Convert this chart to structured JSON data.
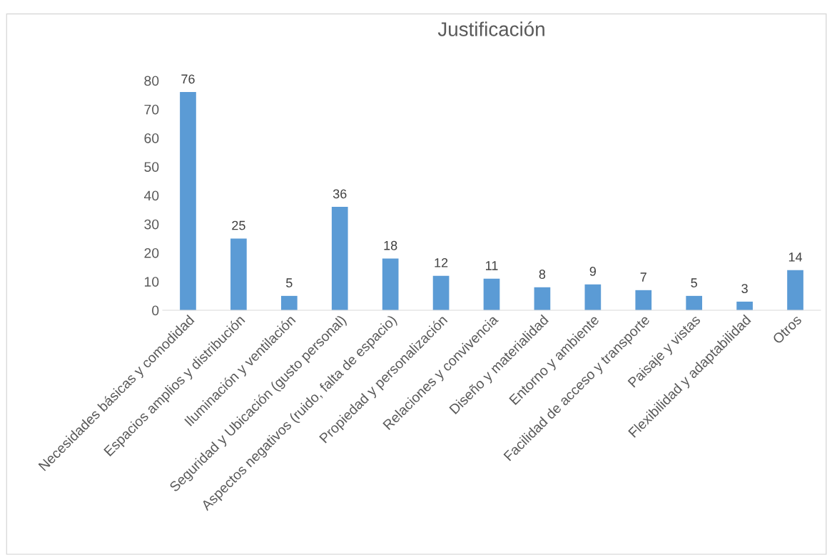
{
  "chart_data": {
    "type": "bar",
    "title": "Justificación",
    "categories": [
      "Necesidades básicas y comodidad",
      "Espacios amplios y distribución",
      "Iluminación y ventilación",
      "Seguridad y Ubicación (gusto personal)",
      "Aspectos negativos (ruido, falta de espacio)",
      "Propiedad y personalización",
      "Relaciones y convivencia",
      "Diseño y materialidad",
      "Entorno y ambiente",
      "Facilidad de acceso y transporte",
      "Paisaje y vistas",
      "Flexibilidad y adaptabilidad",
      "Otros"
    ],
    "values": [
      76,
      25,
      5,
      36,
      18,
      12,
      11,
      8,
      9,
      7,
      5,
      3,
      14
    ],
    "color": "#5b9bd5",
    "ylim": [
      0,
      80
    ],
    "yticks": [
      0,
      10,
      20,
      30,
      40,
      50,
      60,
      70,
      80
    ],
    "grid": false,
    "data_labels": true
  }
}
